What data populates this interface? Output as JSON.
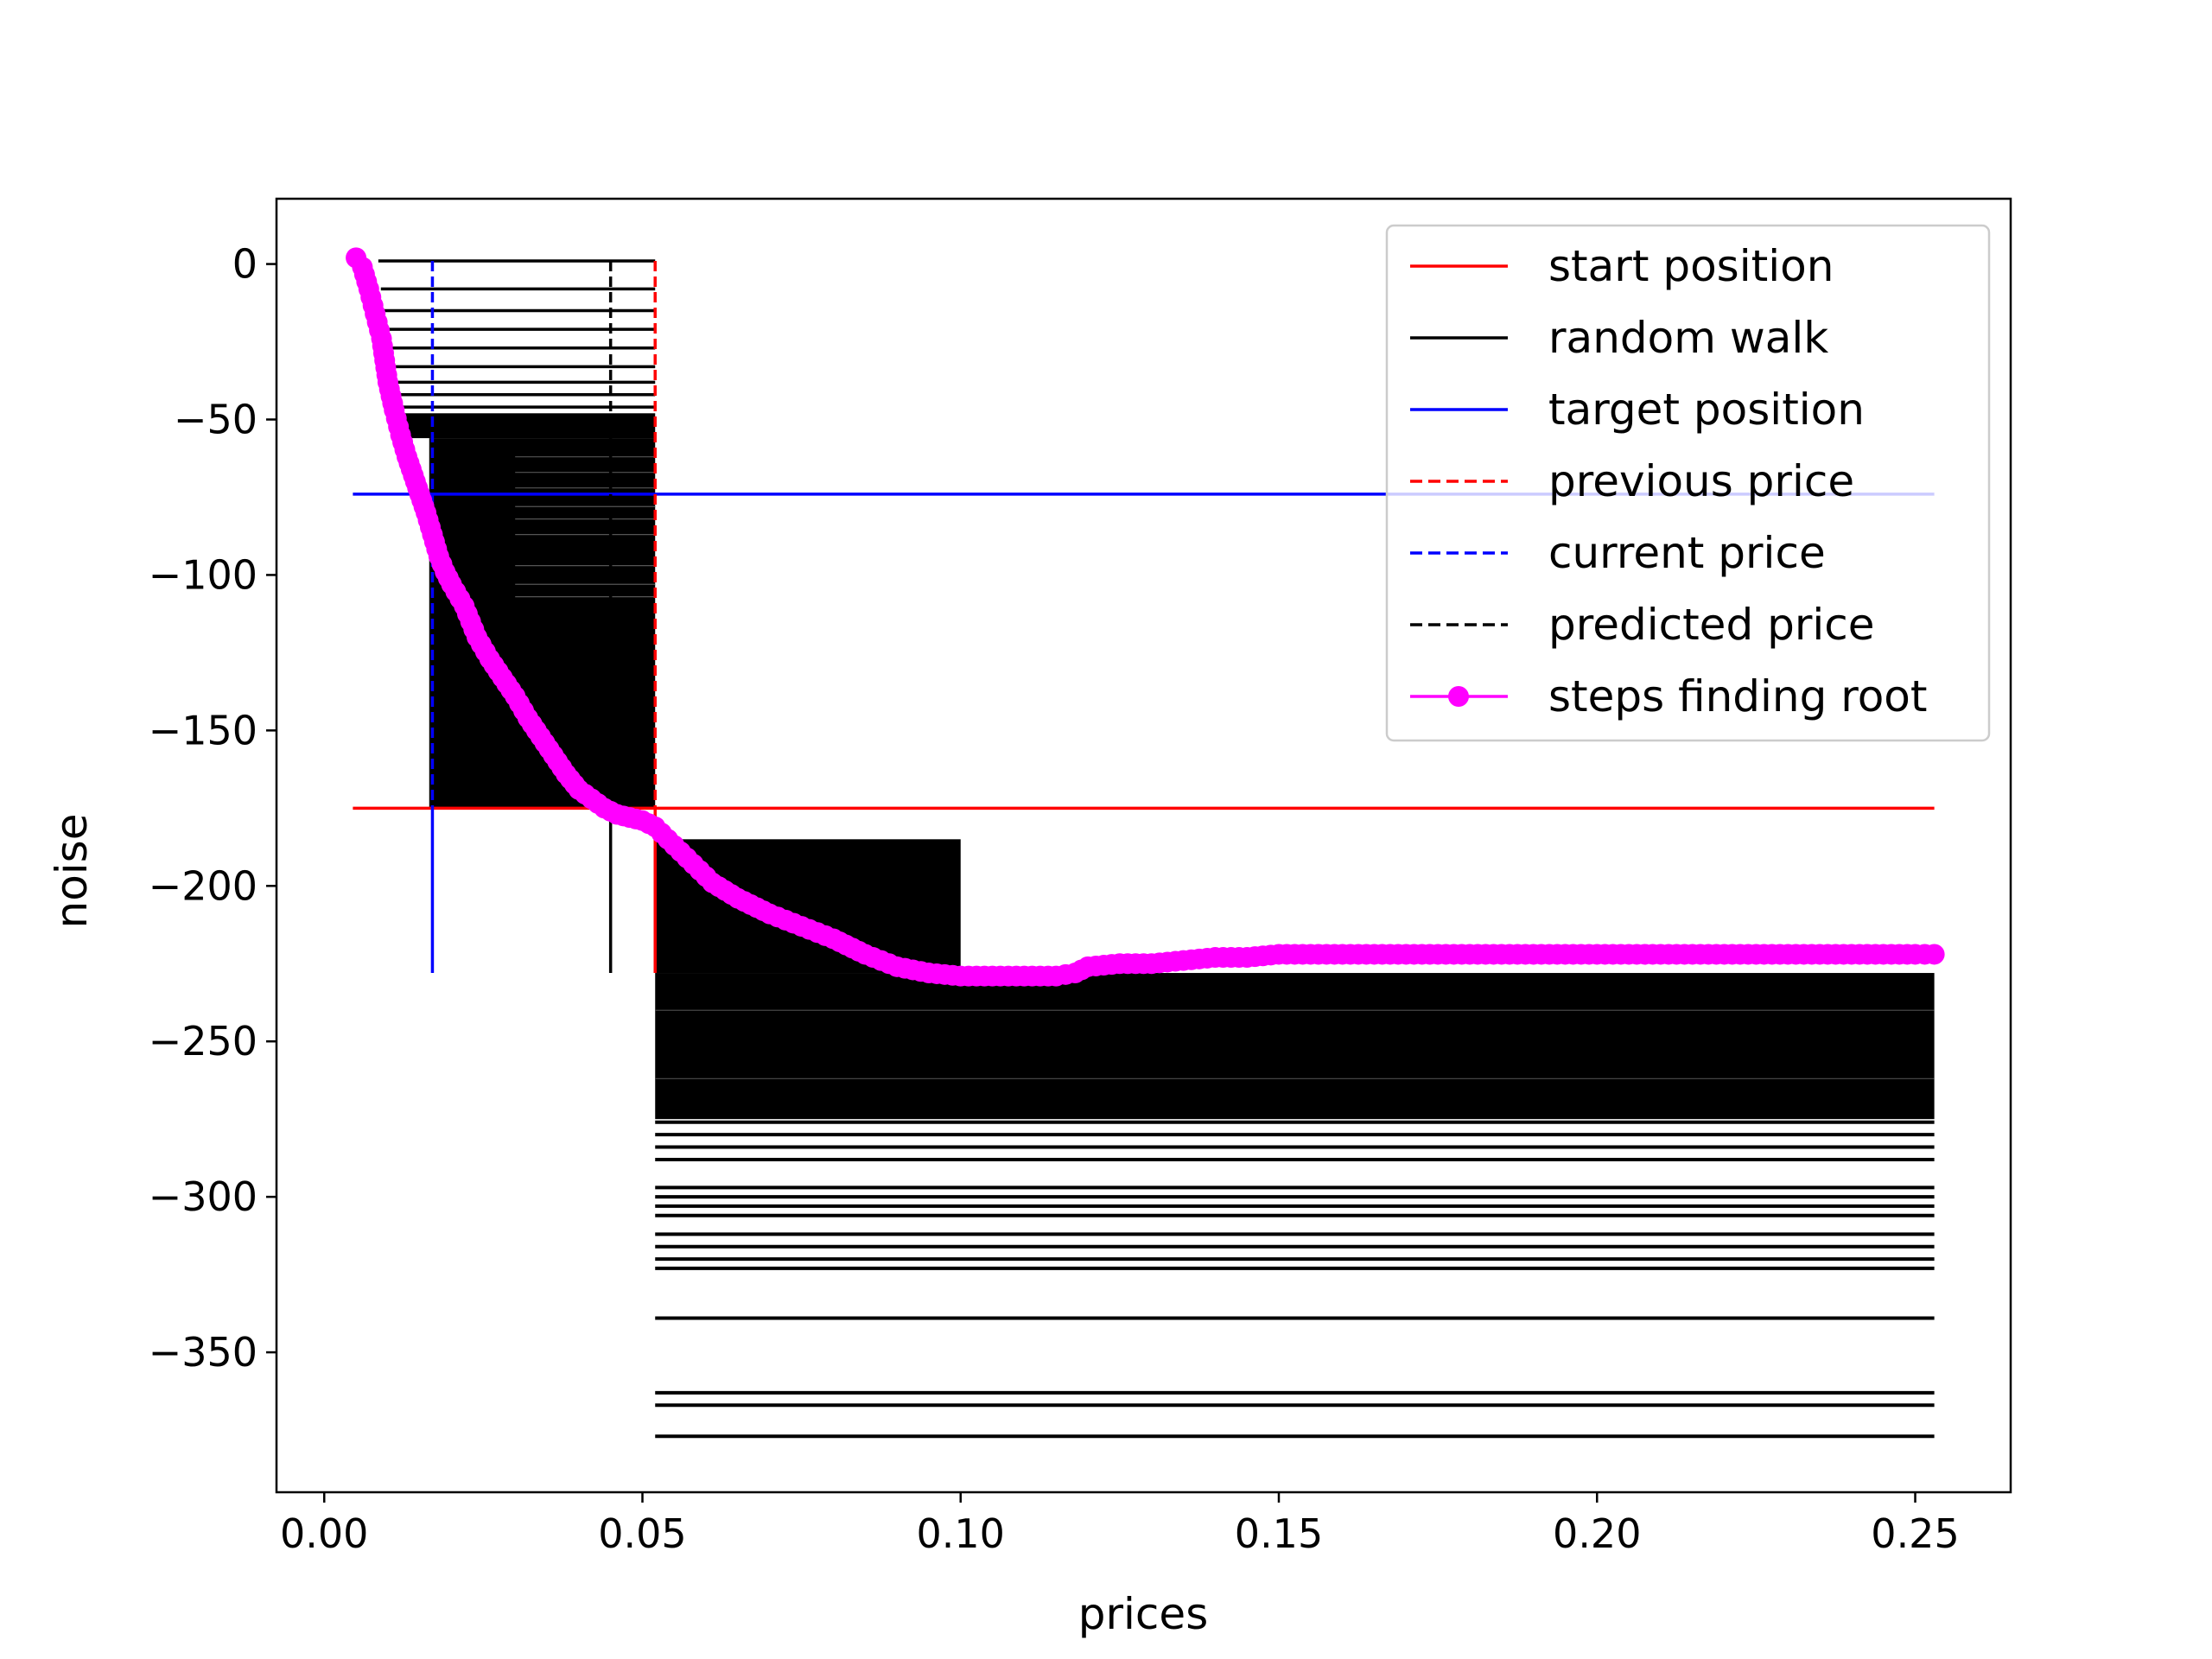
{
  "chart_data": {
    "type": "line",
    "xlabel": "prices",
    "ylabel": "noise",
    "xlim": [
      -0.0075,
      0.265
    ],
    "ylim": [
      -395,
      21
    ],
    "xticks": [
      0.0,
      0.05,
      0.1,
      0.15,
      0.2,
      0.25
    ],
    "xtick_labels": [
      "0.00",
      "0.05",
      "0.10",
      "0.15",
      "0.20",
      "0.25"
    ],
    "yticks": [
      0,
      -50,
      -100,
      -150,
      -200,
      -250,
      -300,
      -350
    ],
    "ytick_labels": [
      "0",
      "−50",
      "−100",
      "−150",
      "−200",
      "−250",
      "−300",
      "−350"
    ],
    "grid": false,
    "legend_position": "top-right",
    "colors": {
      "start": "#ff0000",
      "walk": "#000000",
      "target": "#0000ff",
      "previous": "#ff0000",
      "current": "#0000ff",
      "predicted": "#000000",
      "steps": "#ff00ff"
    },
    "legend": [
      {
        "key": "start",
        "label": "start position",
        "style": "solid"
      },
      {
        "key": "walk",
        "label": "random walk",
        "style": "solid"
      },
      {
        "key": "target",
        "label": "target position",
        "style": "solid"
      },
      {
        "key": "previous",
        "label": "previous price",
        "style": "dashed"
      },
      {
        "key": "current",
        "label": "current price",
        "style": "dashed"
      },
      {
        "key": "predicted",
        "label": "predicted price",
        "style": "dashed"
      },
      {
        "key": "steps",
        "label": "steps finding root",
        "style": "marker"
      }
    ],
    "start_position": {
      "y": -175,
      "x_range": [
        0.0045,
        0.253
      ]
    },
    "target_position": {
      "y": -74,
      "x_range": [
        0.0045,
        0.253
      ]
    },
    "previous_price": {
      "x": 0.052,
      "y_range": [
        -228,
        1
      ]
    },
    "current_price": {
      "x": 0.017,
      "y_range": [
        -228,
        1
      ]
    },
    "predicted_price": {
      "x": 0.045,
      "y_range": [
        -228,
        1
      ]
    },
    "random_walk_upper": {
      "x_range": [
        0.0045,
        0.052
      ],
      "y_range": [
        -175,
        1
      ],
      "density": "dense",
      "sparse_levels": [
        1,
        -8,
        -15,
        -21,
        -27,
        -33,
        -38,
        -42,
        -46
      ]
    },
    "random_walk_lower": {
      "x_range": [
        0.052,
        0.253
      ],
      "dense_y_range": [
        -228,
        -275
      ],
      "sparse_levels": [
        -276,
        -280,
        -284,
        -288,
        -297,
        -300,
        -303,
        -306,
        -312,
        -316,
        -320,
        -323,
        -339,
        -363,
        -367,
        -377
      ]
    },
    "steps_finding_root": {
      "x": [
        0.005,
        0.006,
        0.007,
        0.008,
        0.009,
        0.0095,
        0.01,
        0.011,
        0.012,
        0.013,
        0.014,
        0.015,
        0.016,
        0.017,
        0.018,
        0.019,
        0.02,
        0.022,
        0.024,
        0.026,
        0.028,
        0.03,
        0.032,
        0.034,
        0.036,
        0.038,
        0.04,
        0.042,
        0.044,
        0.046,
        0.048,
        0.05,
        0.052,
        0.055,
        0.058,
        0.061,
        0.065,
        0.07,
        0.075,
        0.08,
        0.085,
        0.09,
        0.095,
        0.1,
        0.105,
        0.11,
        0.115,
        0.118,
        0.12,
        0.125,
        0.13,
        0.135,
        0.14,
        0.145,
        0.15,
        0.155,
        0.16,
        0.17,
        0.18,
        0.19,
        0.2,
        0.21,
        0.22,
        0.23,
        0.24,
        0.25,
        0.253
      ],
      "y": [
        2,
        -1,
        -8,
        -16,
        -24,
        -31,
        -38,
        -47,
        -55,
        -62,
        -68,
        -74,
        -80,
        -87,
        -94,
        -99,
        -103,
        -110,
        -120,
        -127,
        -133,
        -139,
        -146,
        -152,
        -158,
        -164,
        -169,
        -172,
        -175,
        -177,
        -178,
        -179,
        -181,
        -187,
        -193,
        -199,
        -204,
        -209,
        -213,
        -217,
        -222,
        -226,
        -228,
        -229,
        -229,
        -229,
        -229,
        -228,
        -226,
        -225,
        -225,
        -224,
        -223,
        -223,
        -222,
        -222,
        -222,
        -222,
        -222,
        -222,
        -222,
        -222,
        -222,
        -222,
        -222,
        -222,
        -222
      ]
    }
  }
}
